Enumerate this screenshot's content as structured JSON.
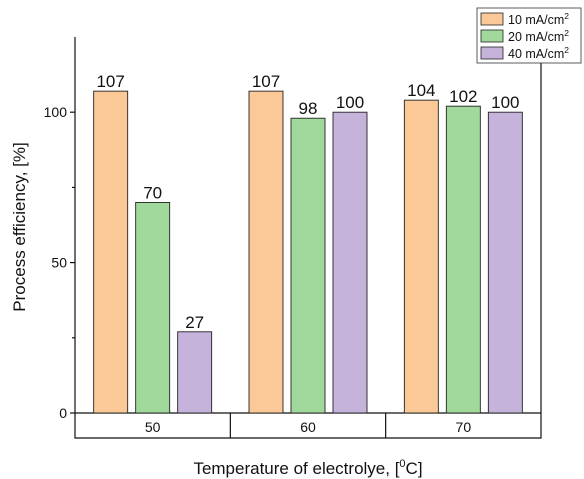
{
  "chart_data": {
    "type": "bar",
    "categories": [
      "50",
      "60",
      "70"
    ],
    "series": [
      {
        "name": "10 mA/cm",
        "name_sup": "2",
        "color": "#fbc998",
        "values": [
          107,
          107,
          104
        ]
      },
      {
        "name": "20 mA/cm",
        "name_sup": "2",
        "color": "#a0d99b",
        "values": [
          70,
          98,
          102
        ]
      },
      {
        "name": "40 mA/cm",
        "name_sup": "2",
        "color": "#c5b3db",
        "values": [
          27,
          100,
          100
        ]
      }
    ],
    "data_labels": [
      [
        "107",
        "70",
        "27"
      ],
      [
        "107",
        "98",
        "100"
      ],
      [
        "104",
        "102",
        "100"
      ]
    ],
    "xlabel": {
      "text": "Temperature of electrolye, [",
      "sup": "0",
      "suffix": "C]"
    },
    "ylabel": "Process efficiency, [%]",
    "ylim": [
      0,
      125
    ],
    "yticks": [
      0,
      50,
      100
    ],
    "grid": false,
    "legend_position": "top-right"
  }
}
